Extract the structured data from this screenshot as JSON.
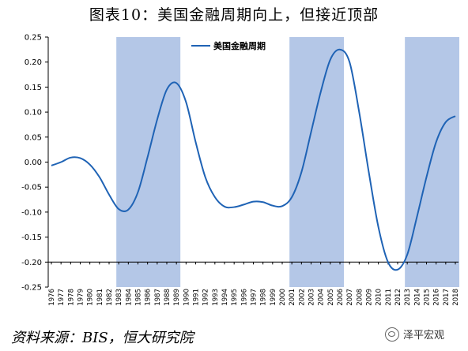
{
  "title": "图表10：美国金融周期向上，但接近顶部",
  "source": "资料来源：BIS，恒大研究院",
  "watermark": "泽平宏观",
  "chart_data": {
    "type": "line",
    "title": "图表10：美国金融周期向上，但接近顶部",
    "xlabel": "",
    "ylabel": "",
    "ylim": [
      -0.25,
      0.25
    ],
    "yticks": [
      0.25,
      0.2,
      0.15,
      0.1,
      0.05,
      0.0,
      -0.05,
      -0.1,
      -0.15,
      -0.2,
      -0.25
    ],
    "ytick_labels": [
      "0.25",
      "0.20",
      "0.15",
      "0.10",
      "0.05",
      "0.00",
      "-0.05",
      "-0.10",
      "-0.15",
      "-0.20",
      "-0.25"
    ],
    "x": [
      "1976",
      "1977",
      "1978",
      "1979",
      "1980",
      "1981",
      "1982",
      "1983",
      "1984",
      "1985",
      "1986",
      "1987",
      "1988",
      "1989",
      "1990",
      "1991",
      "1992",
      "1993",
      "1994",
      "1995",
      "1996",
      "1997",
      "1998",
      "1999",
      "2000",
      "2001",
      "2002",
      "2003",
      "2004",
      "2005",
      "2006",
      "2007",
      "2008",
      "2009",
      "2010",
      "2011",
      "2012",
      "2013",
      "2014",
      "2015",
      "2016",
      "2017",
      "2018"
    ],
    "legend": {
      "position": "top-left-inside",
      "entries": [
        "美国金融周期"
      ]
    },
    "series": [
      {
        "name": "美国金融周期",
        "color": "#1f63b5",
        "points": [
          [
            1976,
            -0.007
          ],
          [
            1977,
            0.0
          ],
          [
            1978,
            0.009
          ],
          [
            1979,
            0.008
          ],
          [
            1980,
            -0.005
          ],
          [
            1981,
            -0.03
          ],
          [
            1982,
            -0.065
          ],
          [
            1983,
            -0.094
          ],
          [
            1984,
            -0.095
          ],
          [
            1985,
            -0.06
          ],
          [
            1986,
            0.01
          ],
          [
            1987,
            0.085
          ],
          [
            1988,
            0.145
          ],
          [
            1989,
            0.158
          ],
          [
            1990,
            0.12
          ],
          [
            1991,
            0.04
          ],
          [
            1992,
            -0.03
          ],
          [
            1993,
            -0.07
          ],
          [
            1994,
            -0.089
          ],
          [
            1995,
            -0.09
          ],
          [
            1996,
            -0.085
          ],
          [
            1997,
            -0.079
          ],
          [
            1998,
            -0.08
          ],
          [
            1999,
            -0.087
          ],
          [
            2000,
            -0.088
          ],
          [
            2001,
            -0.07
          ],
          [
            2002,
            -0.02
          ],
          [
            2003,
            0.06
          ],
          [
            2004,
            0.14
          ],
          [
            2005,
            0.205
          ],
          [
            2006,
            0.225
          ],
          [
            2007,
            0.2
          ],
          [
            2008,
            0.1
          ],
          [
            2009,
            -0.02
          ],
          [
            2010,
            -0.13
          ],
          [
            2011,
            -0.2
          ],
          [
            2012,
            -0.215
          ],
          [
            2013,
            -0.185
          ],
          [
            2014,
            -0.11
          ],
          [
            2015,
            -0.03
          ],
          [
            2016,
            0.04
          ],
          [
            2017,
            0.08
          ],
          [
            2018,
            0.092
          ]
        ]
      }
    ],
    "shaded_ranges": [
      [
        1983,
        1989
      ],
      [
        2001,
        2006
      ],
      [
        2013,
        2018
      ]
    ],
    "shade_color": "#b4c7e7",
    "grid": false
  }
}
